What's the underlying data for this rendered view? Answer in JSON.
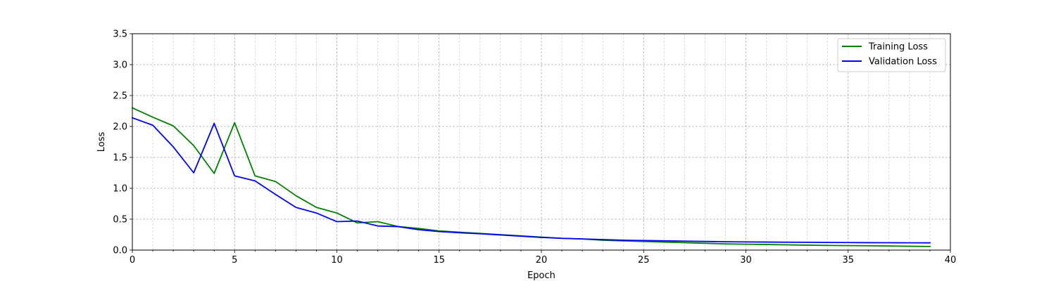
{
  "chart_data": {
    "type": "line",
    "title": "",
    "xlabel": "Epoch",
    "ylabel": "Loss",
    "xlim": [
      0,
      40
    ],
    "ylim": [
      0,
      3.5
    ],
    "x_ticks": [
      0,
      5,
      10,
      15,
      20,
      25,
      30,
      35,
      40
    ],
    "x_tick_labels": [
      "0",
      "5",
      "10",
      "15",
      "20",
      "25",
      "30",
      "35",
      "40"
    ],
    "y_ticks": [
      0,
      0.5,
      1.0,
      1.5,
      2.0,
      2.5,
      3.0,
      3.5
    ],
    "y_tick_labels": [
      "0.0",
      "0.5",
      "1.0",
      "1.5",
      "2.0",
      "2.5",
      "3.0",
      "3.5"
    ],
    "grid": true,
    "legend_position": "top-right",
    "x": [
      0,
      1,
      2,
      3,
      4,
      5,
      6,
      7,
      8,
      9,
      10,
      11,
      12,
      13,
      14,
      15,
      16,
      17,
      18,
      19,
      20,
      21,
      22,
      23,
      24,
      25,
      26,
      27,
      28,
      29,
      30,
      31,
      32,
      33,
      34,
      35,
      36,
      37,
      38,
      39
    ],
    "series": [
      {
        "name": "Training Loss",
        "color": "#008000",
        "values": [
          2.3,
          2.15,
          2.01,
          1.69,
          1.24,
          2.06,
          1.2,
          1.11,
          0.88,
          0.69,
          0.6,
          0.44,
          0.46,
          0.38,
          0.35,
          0.31,
          0.29,
          0.27,
          0.25,
          0.23,
          0.21,
          0.19,
          0.18,
          0.16,
          0.15,
          0.14,
          0.13,
          0.12,
          0.11,
          0.1,
          0.095,
          0.09,
          0.085,
          0.08,
          0.075,
          0.072,
          0.07,
          0.066,
          0.062,
          0.058
        ]
      },
      {
        "name": "Validation Loss",
        "color": "#0000ff",
        "values": [
          2.14,
          2.02,
          1.67,
          1.25,
          2.05,
          1.2,
          1.12,
          0.9,
          0.69,
          0.6,
          0.46,
          0.47,
          0.39,
          0.38,
          0.33,
          0.3,
          0.28,
          0.265,
          0.245,
          0.225,
          0.205,
          0.19,
          0.18,
          0.17,
          0.16,
          0.155,
          0.15,
          0.145,
          0.14,
          0.135,
          0.132,
          0.13,
          0.128,
          0.126,
          0.124,
          0.122,
          0.12,
          0.119,
          0.118,
          0.117
        ]
      }
    ]
  }
}
